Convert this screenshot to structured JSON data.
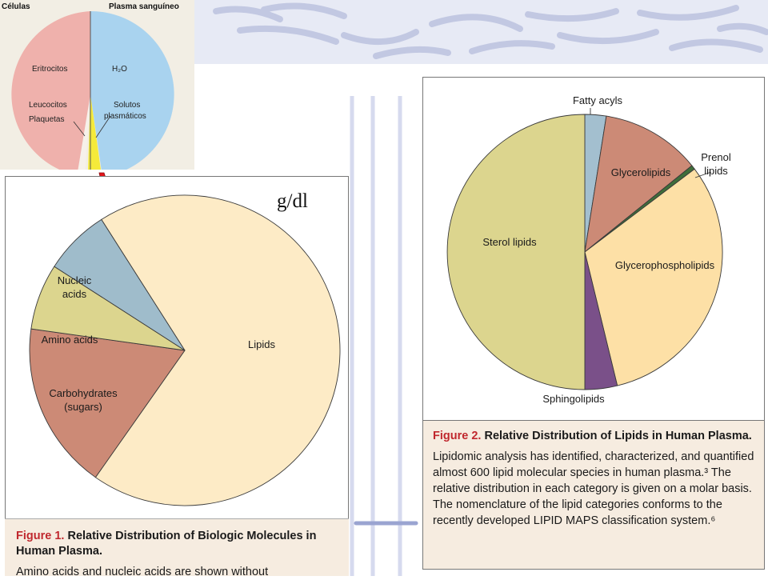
{
  "inset": {
    "heading_left": "Células",
    "heading_right": "Plasma sanguíneo",
    "label_rbc": "Eritrocitos",
    "label_water": "H₂O",
    "label_wbc_1": "Leucocitos",
    "label_wbc_2": "Plaquetas",
    "label_solutes_1": "Solutos",
    "label_solutes_2": "plasmáticos"
  },
  "unit_label": "g/dl",
  "chart_data": [
    {
      "type": "pie",
      "title": "",
      "slices": [
        {
          "label": "Lipids",
          "value": 65.0,
          "color": "#fdebc6"
        },
        {
          "label": "Carbohydrates (sugars)",
          "value": 16.5,
          "color": "#cc8a76"
        },
        {
          "label": "Amino acids",
          "value": 6.5,
          "color": "#dcd58e"
        },
        {
          "label": "Nucleic acids",
          "value": 6.5,
          "color": "#9fbccb"
        }
      ],
      "start_slice_start_deg": 327.5,
      "direction": "clockwise",
      "label_lines": {
        "Lipids": [
          "Lipids"
        ],
        "Carbohydrates (sugars)": [
          "Carbohydrates",
          "(sugars)"
        ],
        "Amino acids": [
          "Amino acids"
        ],
        "Nucleic acids": [
          "Nucleic",
          "acids"
        ]
      }
    },
    {
      "type": "pie",
      "title": "",
      "slices": [
        {
          "label": "Fatty acyls",
          "value": 2.5,
          "color": "#a3bfcf"
        },
        {
          "label": "Glycerolipids",
          "value": 11.7,
          "color": "#cc8a76"
        },
        {
          "label": "Prenol lipids",
          "value": 0.5,
          "color": "#3f6e3a"
        },
        {
          "label": "Glycerophospholipids",
          "value": 31.5,
          "color": "#fde0a6"
        },
        {
          "label": "Sphingolipids",
          "value": 3.8,
          "color": "#7a5089"
        },
        {
          "label": "Sterol lipids",
          "value": 50.0,
          "color": "#dcd58e"
        }
      ],
      "start_slice_start_deg": 0,
      "direction": "clockwise",
      "label_lines": {
        "Fatty acyls": [
          "Fatty acyls"
        ],
        "Glycerolipids": [
          "Glycerolipids"
        ],
        "Prenol lipids": [
          "Prenol",
          "lipids"
        ],
        "Glycerophospholipids": [
          "Glycerophospholipids"
        ],
        "Sphingolipids": [
          "Sphingolipids"
        ],
        "Sterol lipids": [
          "Sterol lipids"
        ]
      }
    }
  ],
  "figure1": {
    "fig_number": "Figure 1.",
    "title": "Relative Distribution of Biologic Molecules in Human Plasma.",
    "body": "Amino acids and nucleic acids are shown without"
  },
  "figure2": {
    "fig_number": "Figure 2.",
    "title": "Relative Distribution of Lipids in Human Plasma.",
    "body": "Lipidomic analysis has identified, characterized, and quantified almost 600 lipid molecular species in human plasma.³ The relative distribution in each category is given on a molar basis. The nomenclature of the lipid categories conforms to the recently developed LIPID MAPS classification system.⁶"
  },
  "colors": {
    "wash": "#c7cde6",
    "caption_red": "#c0282e",
    "bolt": "#e3151b"
  }
}
